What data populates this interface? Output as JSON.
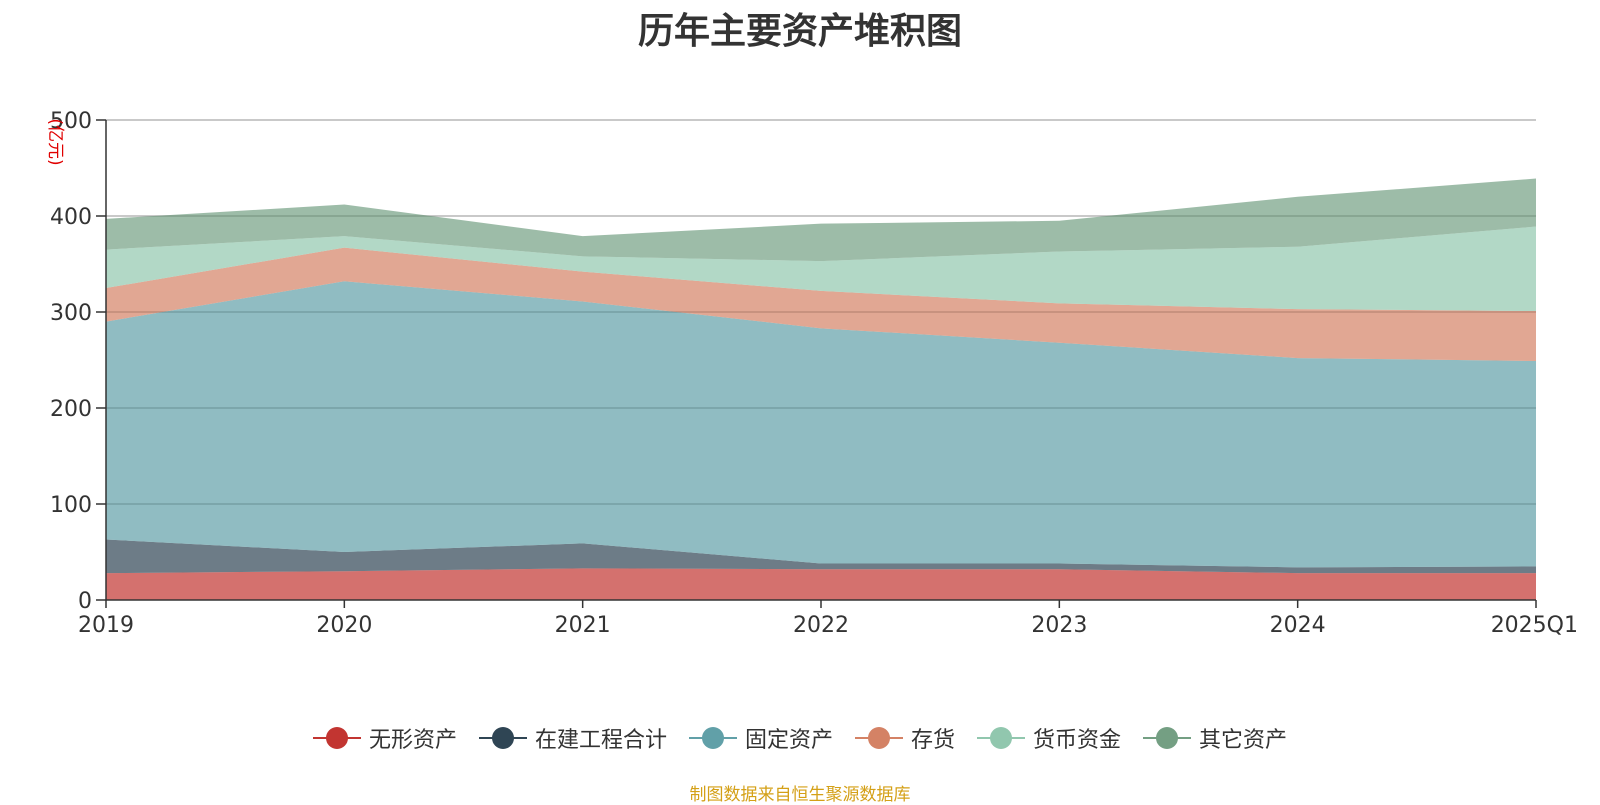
{
  "chart_data": {
    "type": "area",
    "stacked": true,
    "title": "历年主要资产堆积图",
    "ylabel": "(亿元)",
    "xlabel": "",
    "categories": [
      "2019",
      "2020",
      "2021",
      "2022",
      "2023",
      "2024",
      "2025Q1"
    ],
    "ylim": [
      0,
      500
    ],
    "yticks": [
      0,
      100,
      200,
      300,
      400,
      500
    ],
    "grid": true,
    "legend_position": "bottom",
    "series": [
      {
        "name": "无形资产",
        "color": "#c23531",
        "values": [
          28,
          30,
          33,
          32,
          32,
          28,
          28
        ]
      },
      {
        "name": "在建工程合计",
        "color": "#2f4554",
        "values": [
          35,
          20,
          26,
          6,
          6,
          6,
          7
        ]
      },
      {
        "name": "固定资产",
        "color": "#61a0a8",
        "values": [
          227,
          282,
          252,
          245,
          230,
          218,
          214
        ]
      },
      {
        "name": "存货",
        "color": "#d48265",
        "values": [
          35,
          35,
          31,
          39,
          41,
          51,
          52
        ]
      },
      {
        "name": "货币资金",
        "color": "#91c7ae",
        "values": [
          40,
          12,
          16,
          31,
          54,
          65,
          88
        ]
      },
      {
        "name": "其它资产",
        "color": "#749f83",
        "values": [
          32,
          33,
          21,
          39,
          32,
          52,
          50
        ]
      }
    ]
  },
  "source": "制图数据来自恒生聚源数据库"
}
